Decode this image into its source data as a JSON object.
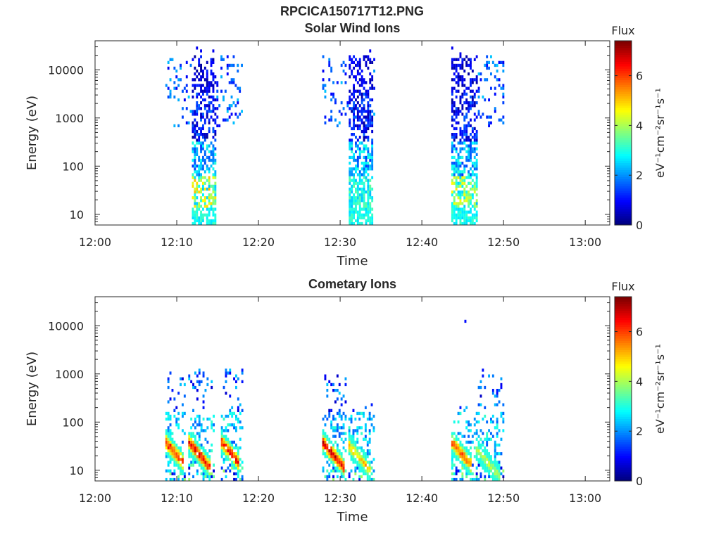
{
  "figure_title": "RPCICA150717T12.PNG",
  "chart_data": [
    {
      "type": "heatmap",
      "title": "Solar Wind Ions",
      "xlabel": "Time",
      "ylabel": "Energy (eV)",
      "x_ticks": [
        "12:00",
        "12:10",
        "12:20",
        "12:30",
        "12:40",
        "12:50",
        "13:00"
      ],
      "xlim": [
        "12:00",
        "13:03"
      ],
      "y_scale": "log",
      "y_ticks": [
        "10",
        "100",
        "1000",
        "10000"
      ],
      "ylim": [
        6,
        40000
      ],
      "colorbar": {
        "title": "Flux",
        "label": "eV⁻¹cm⁻²sr⁻¹s⁻¹",
        "ticks": [
          "0",
          "2",
          "4",
          "6"
        ],
        "range": [
          0,
          7.4
        ],
        "colormap": "jet"
      },
      "bursts": [
        {
          "start": "12:08.6",
          "core_start": "12:11.8",
          "core_end": "12:14.6",
          "end": "12:18.0",
          "emax_sparse": 30000,
          "emax_core": 20000,
          "peak_flux": 5.2
        },
        {
          "start": "12:27.8",
          "core_start": "12:30.9",
          "core_end": "12:33.8",
          "end": "12:34.2",
          "emax_sparse": 30000,
          "emax_core": 20000,
          "peak_flux": 3.5
        },
        {
          "start": "12:43.6",
          "core_start": "12:43.6",
          "core_end": "12:46.8",
          "end": "12:50.0",
          "emax_sparse": 30000,
          "emax_core": 20000,
          "peak_flux": 4.8
        }
      ]
    },
    {
      "type": "heatmap",
      "title": "Cometary Ions",
      "xlabel": "Time",
      "ylabel": "Energy (eV)",
      "x_ticks": [
        "12:00",
        "12:10",
        "12:20",
        "12:30",
        "12:40",
        "12:50",
        "13:00"
      ],
      "xlim": [
        "12:00",
        "13:03"
      ],
      "y_scale": "log",
      "y_ticks": [
        "10",
        "100",
        "1000",
        "10000"
      ],
      "ylim": [
        6,
        40000
      ],
      "colorbar": {
        "title": "Flux",
        "label": "eV⁻¹cm⁻²sr⁻¹s⁻¹",
        "ticks": [
          "0",
          "2",
          "4",
          "6"
        ],
        "range": [
          0,
          7.4
        ],
        "colormap": "jet"
      },
      "bursts": [
        {
          "start": "12:08.6",
          "end": "12:11.0",
          "emax": 1000,
          "peak_energy": 35,
          "peak_flux": 7.0
        },
        {
          "start": "12:11.4",
          "end": "12:14.6",
          "emax": 1200,
          "peak_energy": 35,
          "peak_flux": 7.0
        },
        {
          "start": "12:15.4",
          "end": "12:18.0",
          "emax": 1200,
          "peak_energy": 35,
          "peak_flux": 7.0
        },
        {
          "start": "12:27.8",
          "end": "12:30.8",
          "emax": 1000,
          "peak_energy": 35,
          "peak_flux": 7.2
        },
        {
          "start": "12:31.0",
          "end": "12:34.2",
          "emax": 220,
          "peak_energy": 30,
          "peak_flux": 5.5
        },
        {
          "start": "12:43.6",
          "end": "12:46.4",
          "emax": 220,
          "peak_energy": 35,
          "peak_flux": 6.5
        },
        {
          "start": "12:46.6",
          "end": "12:50.0",
          "emax": 1200,
          "peak_energy": 25,
          "peak_flux": 4.5
        }
      ],
      "isolated_points": [
        {
          "time": "12:45.2",
          "energy": 13000,
          "flux": 1.0
        }
      ]
    }
  ]
}
